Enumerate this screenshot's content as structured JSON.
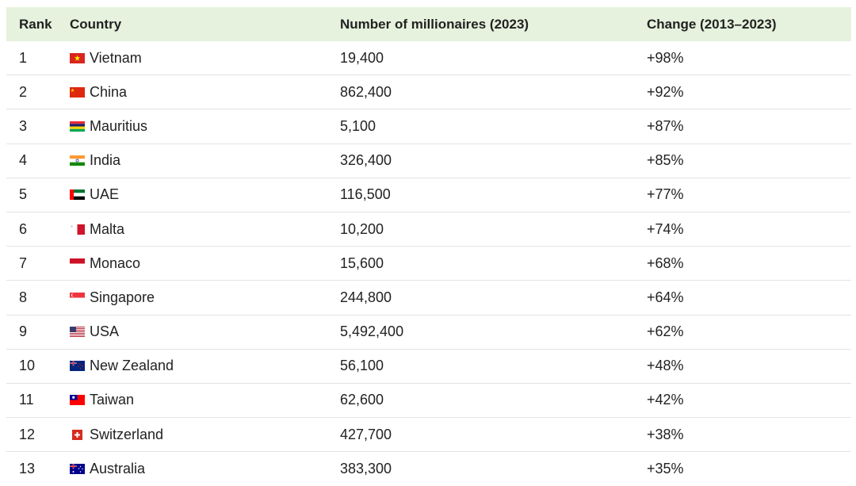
{
  "table": {
    "headers": {
      "rank": "Rank",
      "country": "Country",
      "millionaires": "Number of millionaires (2023)",
      "change": "Change (2013–2023)"
    },
    "rows": [
      {
        "rank": "1",
        "country": "Vietnam",
        "millionaires": "19,400",
        "change": "+98%",
        "flag_icon": "vietnam-flag-icon"
      },
      {
        "rank": "2",
        "country": "China",
        "millionaires": "862,400",
        "change": "+92%",
        "flag_icon": "china-flag-icon"
      },
      {
        "rank": "3",
        "country": "Mauritius",
        "millionaires": "5,100",
        "change": "+87%",
        "flag_icon": "mauritius-flag-icon"
      },
      {
        "rank": "4",
        "country": "India",
        "millionaires": "326,400",
        "change": "+85%",
        "flag_icon": "india-flag-icon"
      },
      {
        "rank": "5",
        "country": "UAE",
        "millionaires": "116,500",
        "change": "+77%",
        "flag_icon": "uae-flag-icon"
      },
      {
        "rank": "6",
        "country": "Malta",
        "millionaires": "10,200",
        "change": "+74%",
        "flag_icon": "malta-flag-icon"
      },
      {
        "rank": "7",
        "country": "Monaco",
        "millionaires": "15,600",
        "change": "+68%",
        "flag_icon": "monaco-flag-icon"
      },
      {
        "rank": "8",
        "country": "Singapore",
        "millionaires": "244,800",
        "change": "+64%",
        "flag_icon": "singapore-flag-icon"
      },
      {
        "rank": "9",
        "country": "USA",
        "millionaires": "5,492,400",
        "change": "+62%",
        "flag_icon": "usa-flag-icon"
      },
      {
        "rank": "10",
        "country": "New Zealand",
        "millionaires": "56,100",
        "change": "+48%",
        "flag_icon": "new-zealand-flag-icon"
      },
      {
        "rank": "11",
        "country": "Taiwan",
        "millionaires": "62,600",
        "change": "+42%",
        "flag_icon": "taiwan-flag-icon"
      },
      {
        "rank": "12",
        "country": "Switzerland",
        "millionaires": "427,700",
        "change": "+38%",
        "flag_icon": "switzerland-flag-icon"
      },
      {
        "rank": "13",
        "country": "Australia",
        "millionaires": "383,300",
        "change": "+35%",
        "flag_icon": "australia-flag-icon"
      }
    ]
  },
  "colors": {
    "header_background": "#e6f2dd",
    "row_divider": "#e3e3e3",
    "text": "#222222"
  }
}
